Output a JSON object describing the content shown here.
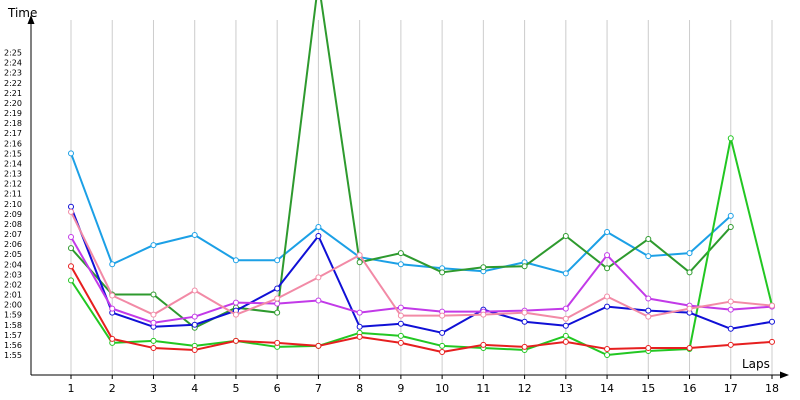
{
  "chart_data": {
    "type": "line",
    "xlabel": "Laps",
    "ylabel": "Time",
    "x": [
      1,
      2,
      3,
      4,
      5,
      6,
      7,
      8,
      9,
      10,
      11,
      12,
      13,
      14,
      15,
      16,
      17,
      18
    ],
    "ylim": [
      "1:55",
      "2:25"
    ],
    "y_ticks": [
      "1:55",
      "1:56",
      "1:57",
      "1:58",
      "1:59",
      "2:00",
      "2:01",
      "2:02",
      "2:03",
      "2:04",
      "2:05",
      "2:06",
      "2:07",
      "2:08",
      "2:09",
      "2:10",
      "2:11",
      "2:12",
      "2:13",
      "2:14",
      "2:15",
      "2:16",
      "2:17",
      "2:18",
      "2:19",
      "2:20",
      "2:21",
      "2:22",
      "2:23",
      "2:24",
      "2:25"
    ],
    "grid": {
      "vertical": true,
      "horizontal": false
    },
    "legend": "none",
    "series": [
      {
        "color": "#1ca0e6",
        "values": [
          "2:15.0",
          "2:04.0",
          "2:05.9",
          "2:06.9",
          "2:04.4",
          "2:04.4",
          "2:07.7",
          "2:04.7",
          "2:04.0",
          "2:03.6",
          "2:03.3",
          "2:04.2",
          "2:03.1",
          "2:07.2",
          "2:04.8",
          "2:05.1",
          "2:08.8",
          null
        ]
      },
      {
        "color": "#2e9a2e",
        "values": [
          "2:05.6",
          "2:01.0",
          "2:01.0",
          "1:57.7",
          "1:59.7",
          "1:59.2",
          "2:32.0",
          "2:04.2",
          "2:05.1",
          "2:03.2",
          "2:03.7",
          "2:03.8",
          "2:06.8",
          "2:03.6",
          "2:06.5",
          "2:03.2",
          "2:07.7",
          null
        ]
      },
      {
        "color": "#22c722",
        "values": [
          "2:02.4",
          "1:56.2",
          "1:56.4",
          "1:55.9",
          "1:56.4",
          "1:55.8",
          "1:55.9",
          "1:57.2",
          "1:56.9",
          "1:55.9",
          "1:55.7",
          "1:55.5",
          "1:56.9",
          "1:55.0",
          "1:55.4",
          "1:55.6",
          "2:16.5",
          "1:59.9"
        ]
      },
      {
        "color": "#e61f1f",
        "values": [
          "2:03.8",
          "1:56.6",
          "1:55.7",
          "1:55.5",
          "1:56.4",
          "1:56.2",
          "1:55.9",
          "1:56.8",
          "1:56.2",
          "1:55.3",
          "1:56.0",
          "1:55.8",
          "1:56.3",
          "1:55.6",
          "1:55.7",
          "1:55.7",
          "1:56.0",
          "1:56.3"
        ]
      },
      {
        "color": "#1010d6",
        "values": [
          "2:09.7",
          "1:59.2",
          "1:57.8",
          "1:58.0",
          "1:59.4",
          "2:01.6",
          "2:06.8",
          "1:57.8",
          "1:58.1",
          "1:57.2",
          "1:59.5",
          "1:58.3",
          "1:57.9",
          "1:59.8",
          "1:59.4",
          "1:59.2",
          "1:57.6",
          "1:58.3"
        ]
      },
      {
        "color": "#c23ae8",
        "values": [
          "2:06.7",
          "1:59.6",
          "1:58.2",
          "1:58.8",
          "2:00.2",
          "2:00.1",
          "2:00.4",
          "1:59.2",
          "1:59.7",
          "1:59.3",
          "1:59.3",
          "1:59.4",
          "1:59.6",
          "2:04.9",
          "2:00.6",
          "1:59.9",
          "1:59.5",
          "1:59.8"
        ]
      },
      {
        "color": "#f28aa6",
        "values": [
          "2:09.2",
          "2:00.9",
          "1:59.0",
          "2:01.4",
          "1:59.0",
          "2:00.6",
          "2:02.7",
          "2:04.9",
          "1:58.9",
          "1:58.9",
          "1:59.0",
          "1:59.2",
          "1:58.6",
          "2:00.8",
          "1:58.8",
          "1:59.6",
          "2:00.3",
          "1:59.9"
        ]
      }
    ]
  }
}
